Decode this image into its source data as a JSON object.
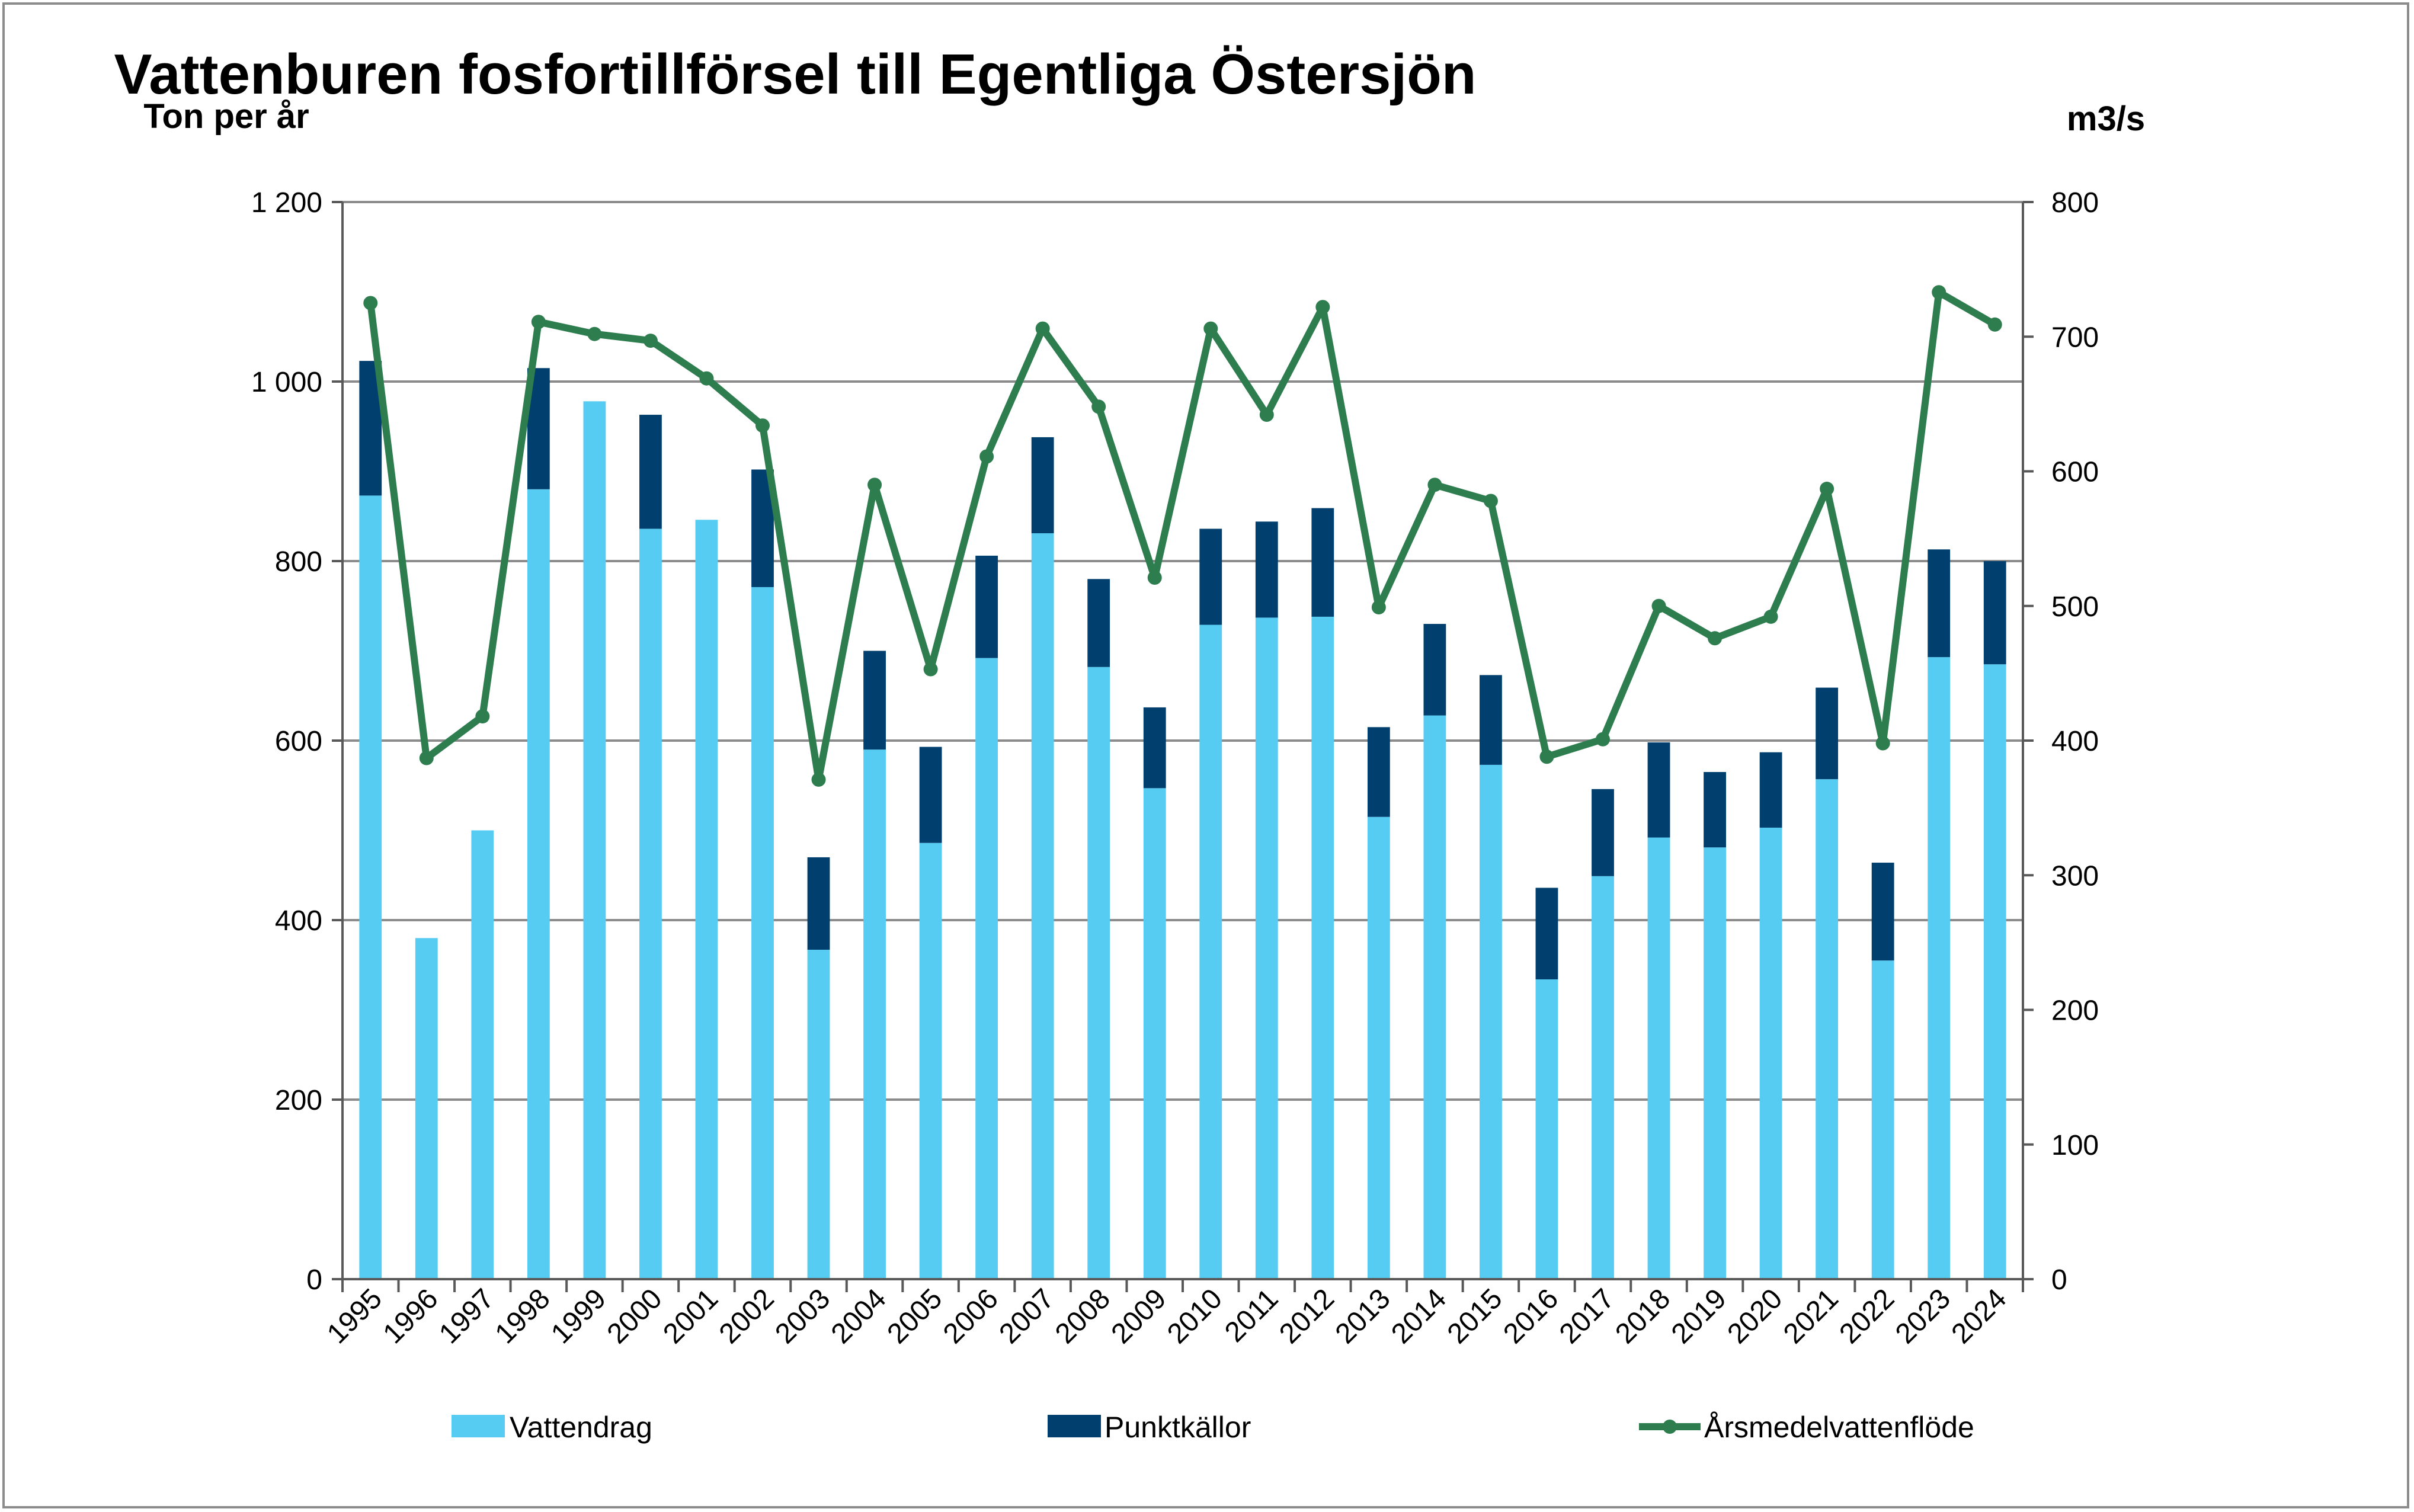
{
  "chart_data": {
    "type": "bar",
    "stacked": true,
    "title": "Vattenburen fosfortillförsel till Egentliga Östersjön",
    "ylabel_left": "Ton per år",
    "ylabel_right": "m3/s",
    "ylim_left": [
      0,
      1200
    ],
    "ylim_right": [
      0,
      800
    ],
    "yticks_left": [
      "0",
      "200",
      "400",
      "600",
      "800",
      "1 000",
      "1 200"
    ],
    "yticks_right": [
      "0",
      "100",
      "200",
      "300",
      "400",
      "500",
      "600",
      "700",
      "800"
    ],
    "grid": true,
    "legend_position": "bottom",
    "categories": [
      "1995",
      "1996",
      "1997",
      "1998",
      "1999",
      "2000",
      "2001",
      "2002",
      "2003",
      "2004",
      "2005",
      "2006",
      "2007",
      "2008",
      "2009",
      "2010",
      "2011",
      "2012",
      "2013",
      "2014",
      "2015",
      "2016",
      "2017",
      "2018",
      "2019",
      "2020",
      "2021",
      "2022",
      "2023",
      "2024"
    ],
    "series": [
      {
        "name": "Vattendrag",
        "type": "bar",
        "axis": "left",
        "color": "#56CCF2",
        "values": [
          873,
          380,
          500,
          880,
          978,
          836,
          846,
          771,
          367,
          590,
          486,
          692,
          831,
          682,
          547,
          729,
          737,
          738,
          515,
          628,
          573,
          334,
          449,
          492,
          481,
          503,
          557,
          355,
          693,
          685
        ]
      },
      {
        "name": "Punktkällor",
        "type": "bar",
        "axis": "left",
        "color": "#003F6E",
        "values": [
          150,
          0,
          0,
          135,
          0,
          127,
          0,
          131,
          103,
          110,
          107,
          114,
          107,
          98,
          90,
          107,
          107,
          121,
          100,
          102,
          100,
          102,
          97,
          106,
          84,
          84,
          102,
          109,
          120,
          115
        ]
      },
      {
        "name": "Årsmedelvattenflöde",
        "type": "line",
        "axis": "right",
        "color": "#2E7D4F",
        "values": [
          725,
          387,
          418,
          711,
          702,
          697,
          669,
          634,
          371,
          590,
          453,
          611,
          706,
          648,
          521,
          706,
          642,
          722,
          499,
          590,
          578,
          388,
          401,
          500,
          476,
          492,
          587,
          398,
          733,
          709
        ]
      }
    ]
  }
}
